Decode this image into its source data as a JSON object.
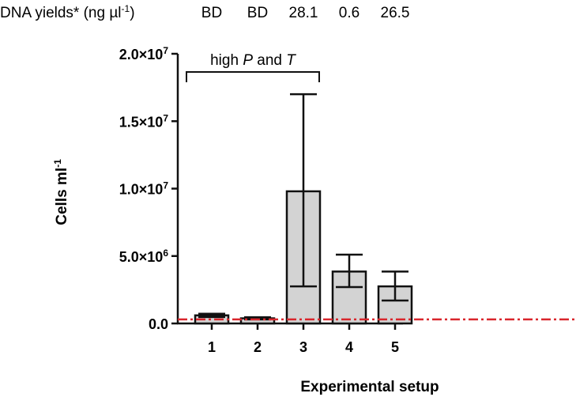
{
  "chart_data": {
    "type": "bar",
    "title": "",
    "xlabel": "Experimental setup",
    "ylabel": {
      "base": "Cells ml",
      "sup": "-1"
    },
    "ylim": [
      0,
      20000000
    ],
    "yticks": [
      {
        "value": 0,
        "mantissa": "0.0",
        "exp": ""
      },
      {
        "value": 5000000,
        "mantissa": "5.0×10",
        "exp": "6"
      },
      {
        "value": 10000000,
        "mantissa": "1.0×10",
        "exp": "7"
      },
      {
        "value": 15000000,
        "mantissa": "1.5×10",
        "exp": "7"
      },
      {
        "value": 20000000,
        "mantissa": "2.0×10",
        "exp": "7"
      }
    ],
    "categories": [
      "1",
      "2",
      "3",
      "4",
      "5"
    ],
    "values": [
      600000,
      380000,
      9800000,
      3850000,
      2750000
    ],
    "error_low": [
      480000,
      300000,
      2750000,
      2700000,
      1700000
    ],
    "error_high": [
      720000,
      460000,
      17000000,
      5100000,
      3850000
    ],
    "threshold": {
      "value": 300000,
      "color": "#d9262c",
      "style": "dash-dot"
    },
    "bar_color": "#d3d3d3",
    "annotation": {
      "prefix": "high ",
      "p": "P",
      "mid": " and ",
      "t": "T",
      "span": [
        "1",
        "2"
      ]
    },
    "dna_yields": {
      "label": "DNA yields* (ng µl",
      "label_sup": "-1",
      "label_close": ")",
      "values": [
        "BD",
        "BD",
        "28.1",
        "0.6",
        "26.5"
      ]
    }
  }
}
